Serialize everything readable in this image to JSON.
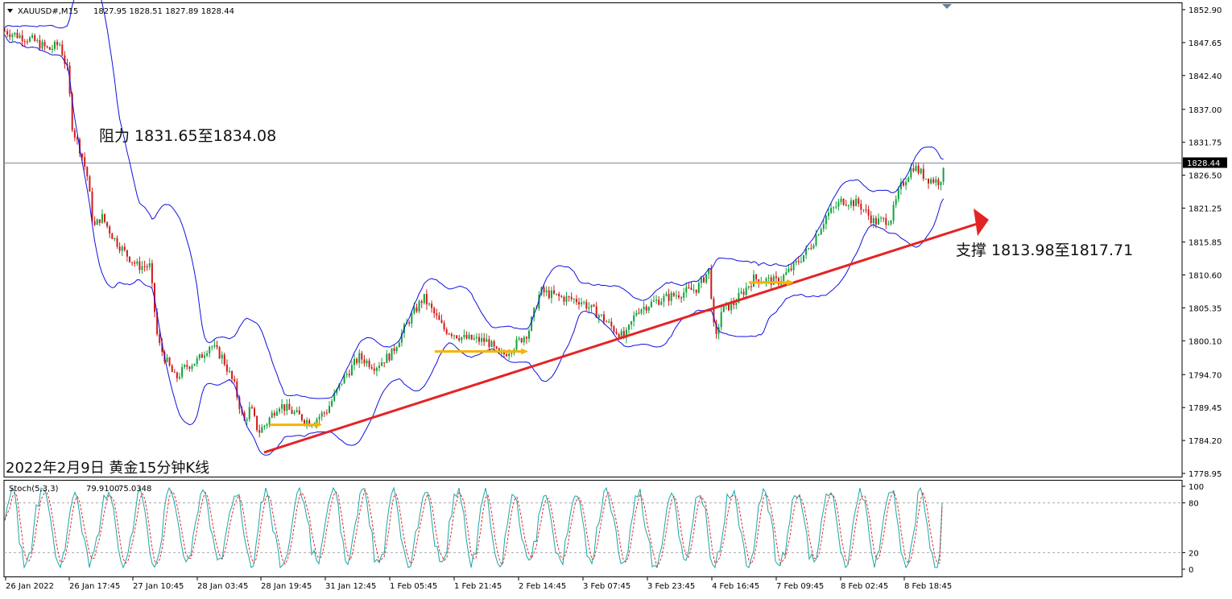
{
  "window": {
    "symbol_title": "XAUUSD#,M15",
    "ohlc_readout": "1827.95 1828.51 1827.89 1828.44"
  },
  "chart_data": [
    {
      "type": "candlestick",
      "symbol": "XAUUSD#",
      "timeframe": "M15",
      "ylim": [
        1776.5,
        1854.5
      ],
      "y_ticks": [
        "1852.90",
        "1847.65",
        "1842.40",
        "1837.00",
        "1831.75",
        "1826.50",
        "1821.25",
        "1815.85",
        "1810.60",
        "1805.35",
        "1800.10",
        "1794.70",
        "1789.45",
        "1784.20",
        "1778.95"
      ],
      "x_ticks": [
        "26 Jan 2022",
        "26 Jan 17:45",
        "27 Jan 10:45",
        "28 Jan 03:45",
        "28 Jan 19:45",
        "31 Jan 12:45",
        "1 Feb 05:45",
        "1 Feb 21:45",
        "2 Feb 14:45",
        "3 Feb 07:45",
        "3 Feb 23:45",
        "4 Feb 16:45",
        "7 Feb 09:45",
        "8 Feb 02:45",
        "8 Feb 18:45"
      ],
      "current_price": "1828.44",
      "price_path": [
        [
          0,
          1849.5
        ],
        [
          35,
          1848.0
        ],
        [
          55,
          1846.5
        ],
        [
          68,
          1847.5
        ],
        [
          78,
          1843.0
        ],
        [
          84,
          1834.0
        ],
        [
          95,
          1830.0
        ],
        [
          103,
          1826.0
        ],
        [
          110,
          1818.0
        ],
        [
          120,
          1820.0
        ],
        [
          135,
          1816.5
        ],
        [
          150,
          1814.0
        ],
        [
          165,
          1812.0
        ],
        [
          180,
          1812.0
        ],
        [
          190,
          1800.0
        ],
        [
          200,
          1797.0
        ],
        [
          212,
          1794.0
        ],
        [
          225,
          1796.0
        ],
        [
          240,
          1797.0
        ],
        [
          255,
          1799.5
        ],
        [
          270,
          1797.5
        ],
        [
          285,
          1793.0
        ],
        [
          297,
          1787.0
        ],
        [
          305,
          1789.5
        ],
        [
          315,
          1785.5
        ],
        [
          325,
          1787.0
        ],
        [
          340,
          1790.0
        ],
        [
          360,
          1788.5
        ],
        [
          380,
          1787.0
        ],
        [
          400,
          1789.0
        ],
        [
          420,
          1794.0
        ],
        [
          440,
          1797.5
        ],
        [
          460,
          1796.0
        ],
        [
          480,
          1798.0
        ],
        [
          500,
          1803.0
        ],
        [
          520,
          1807.0
        ],
        [
          530,
          1805.0
        ],
        [
          545,
          1802.0
        ],
        [
          570,
          1800.5
        ],
        [
          600,
          1800.0
        ],
        [
          615,
          1797.5
        ],
        [
          630,
          1799.0
        ],
        [
          650,
          1801.5
        ],
        [
          665,
          1808.0
        ],
        [
          690,
          1807.0
        ],
        [
          715,
          1806.5
        ],
        [
          740,
          1804.0
        ],
        [
          760,
          1801.5
        ],
        [
          770,
          1800.5
        ],
        [
          785,
          1805.0
        ],
        [
          810,
          1806.5
        ],
        [
          835,
          1807.5
        ],
        [
          860,
          1808.5
        ],
        [
          875,
          1811.5
        ],
        [
          882,
          1799.5
        ],
        [
          890,
          1805.0
        ],
        [
          905,
          1806.0
        ],
        [
          930,
          1810.0
        ],
        [
          960,
          1809.5
        ],
        [
          980,
          1812.0
        ],
        [
          1000,
          1815.0
        ],
        [
          1020,
          1820.0
        ],
        [
          1040,
          1822.5
        ],
        [
          1060,
          1822.0
        ],
        [
          1080,
          1819.0
        ],
        [
          1100,
          1819.5
        ],
        [
          1112,
          1824.5
        ],
        [
          1128,
          1828.0
        ],
        [
          1145,
          1826.0
        ],
        [
          1160,
          1825.5
        ],
        [
          1172,
          1828.44
        ]
      ]
    },
    {
      "type": "line",
      "name": "Stoch(5,3,3)",
      "main_value": "79.9100",
      "signal_value": "75.0348",
      "ylim": [
        0,
        100
      ],
      "y_ticks": [
        "100",
        "80",
        "20",
        "0"
      ],
      "levels": [
        80,
        20
      ]
    }
  ],
  "annotations": {
    "resistance": "阻力 1831.65至1834.08",
    "support": "支撑 1813.98至1817.71",
    "caption": "2022年2月9日 黄金15分钟K线"
  },
  "colors": {
    "bull": "#0fa33a",
    "bear": "#d11a1a",
    "band": "#1010e0",
    "trendline": "#e32424",
    "arrow": "#f4b400",
    "stoch_main": "#1aa6a6",
    "stoch_signal": "#e03030"
  }
}
